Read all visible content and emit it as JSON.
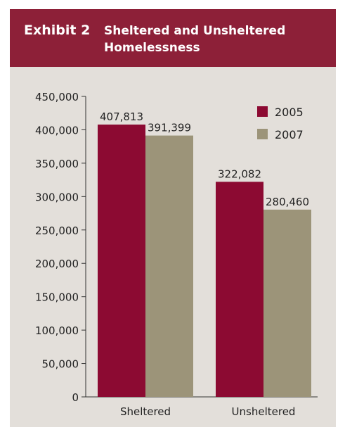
{
  "exhibit": {
    "number": "Exhibit 2",
    "title": "Sheltered and Unsheltered Homelessness"
  },
  "colors": {
    "header": "#8d2038",
    "panel": "#e3dfda",
    "series_2005": "#8c0a32",
    "series_2007": "#9c9479"
  },
  "chart_data": {
    "type": "bar",
    "title": "Sheltered and Unsheltered Homelessness",
    "xlabel": "",
    "ylabel": "",
    "categories": [
      "Sheltered",
      "Unsheltered"
    ],
    "series": [
      {
        "name": "2005",
        "values": [
          407813,
          322082
        ],
        "labels": [
          "407,813",
          "322,082"
        ]
      },
      {
        "name": "2007",
        "values": [
          391399,
          280460
        ],
        "labels": [
          "391,399",
          "280,460"
        ]
      }
    ],
    "ylim": [
      0,
      450000
    ],
    "yticks": [
      0,
      50000,
      100000,
      150000,
      200000,
      250000,
      300000,
      350000,
      400000,
      450000
    ],
    "ytick_labels": [
      "0",
      "50,000",
      "100,000",
      "150,000",
      "200,000",
      "250,000",
      "300,000",
      "350,000",
      "400,000",
      "450,000"
    ],
    "grid": false,
    "legend": "top-right"
  }
}
